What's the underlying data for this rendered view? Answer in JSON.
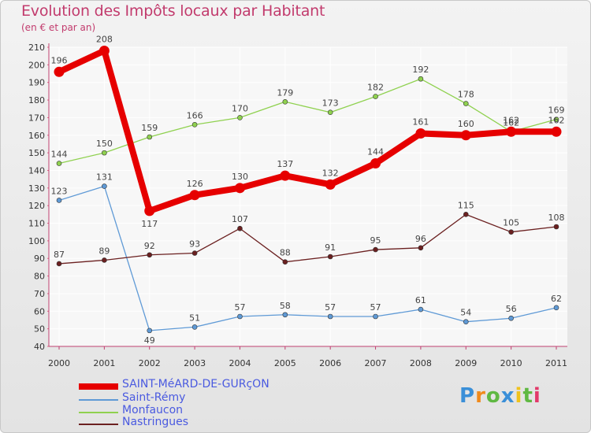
{
  "title": "Evolution des Impôts locaux par Habitant",
  "subtitle": "(en € et par an)",
  "logo": "Proxiti",
  "chart_data": {
    "type": "line",
    "title": "Evolution des Impôts locaux par Habitant",
    "ylabel": "(en € et par an)",
    "xlabel": "",
    "categories": [
      "2000",
      "2001",
      "2002",
      "2003",
      "2004",
      "2005",
      "2006",
      "2007",
      "2008",
      "2009",
      "2010",
      "2011"
    ],
    "ylim": [
      40,
      210
    ],
    "yticks": [
      40,
      50,
      60,
      70,
      80,
      90,
      100,
      110,
      120,
      130,
      140,
      150,
      160,
      170,
      180,
      190,
      200,
      210
    ],
    "grid": true,
    "legend_position": "bottom-left",
    "series": [
      {
        "name": "SAINT-MéARD-DE-GURçON",
        "color": "#e60000",
        "values": [
          196,
          208,
          117,
          126,
          130,
          137,
          132,
          144,
          161,
          160,
          162,
          162
        ],
        "labels": [
          "196",
          "208",
          "117",
          "126",
          "130",
          "137",
          "132",
          "144",
          "161",
          "160",
          "162",
          "162"
        ]
      },
      {
        "name": "Saint-Rémy",
        "color": "#5f9ad6",
        "values": [
          123,
          131,
          49,
          51,
          57,
          58,
          57,
          57,
          61,
          54,
          56,
          62
        ],
        "labels": [
          "123",
          "131",
          "49",
          "51",
          "57",
          "58",
          "57",
          "57",
          "61",
          "54",
          "56",
          "62"
        ]
      },
      {
        "name": "Monfaucon",
        "color": "#8fd14f",
        "values": [
          144,
          150,
          159,
          166,
          170,
          179,
          173,
          182,
          192,
          178,
          162,
          169
        ],
        "labels": [
          "144",
          "150",
          "159",
          "166",
          "170",
          "179",
          "173",
          "182",
          "192",
          "178",
          "162",
          "169"
        ]
      },
      {
        "name": "Nastringues",
        "color": "#6b2020",
        "values": [
          87,
          89,
          92,
          93,
          107,
          88,
          91,
          95,
          96,
          115,
          105,
          108
        ],
        "labels": [
          "87",
          "89",
          "92",
          "93",
          "107",
          "88",
          "91",
          "95",
          "96",
          "115",
          "105",
          "108"
        ]
      }
    ]
  }
}
